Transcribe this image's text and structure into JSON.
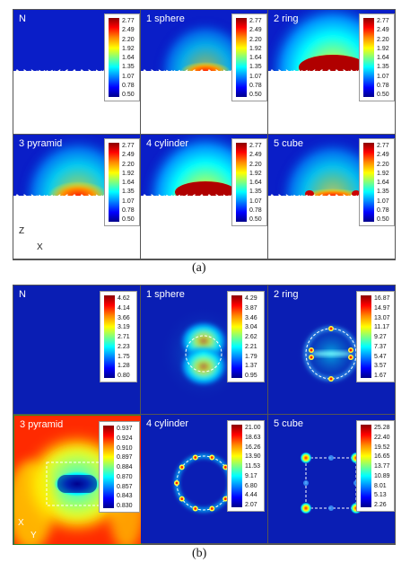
{
  "figure_a": {
    "caption": "(a)",
    "axes": {
      "vertical": "Z",
      "horizontal": "X"
    },
    "panels": [
      {
        "title": "N",
        "shape": "none",
        "ticks": [
          "2.77",
          "2.49",
          "2.20",
          "1.92",
          "1.64",
          "1.35",
          "1.07",
          "0.78",
          "0.50"
        ]
      },
      {
        "title": "1 sphere",
        "shape": "sphere",
        "ticks": [
          "2.77",
          "2.49",
          "2.20",
          "1.92",
          "1.64",
          "1.35",
          "1.07",
          "0.78",
          "0.50"
        ]
      },
      {
        "title": "2 ring",
        "shape": "ring",
        "ticks": [
          "2.77",
          "2.49",
          "2.20",
          "1.92",
          "1.64",
          "1.35",
          "1.07",
          "0.78",
          "0.50"
        ]
      },
      {
        "title": "3 pyramid",
        "shape": "pyramid",
        "ticks": [
          "2.77",
          "2.49",
          "2.20",
          "1.92",
          "1.64",
          "1.35",
          "1.07",
          "0.78",
          "0.50"
        ]
      },
      {
        "title": "4 cylinder",
        "shape": "cylinder",
        "ticks": [
          "2.77",
          "2.49",
          "2.20",
          "1.92",
          "1.64",
          "1.35",
          "1.07",
          "0.78",
          "0.50"
        ]
      },
      {
        "title": "5 cube",
        "shape": "cube",
        "ticks": [
          "2.77",
          "2.49",
          "2.20",
          "1.92",
          "1.64",
          "1.35",
          "1.07",
          "0.78",
          "0.50"
        ]
      }
    ]
  },
  "figure_b": {
    "caption": "(b)",
    "axes": {
      "vertical": "X",
      "horizontal": "Y"
    },
    "panels": [
      {
        "title": "N",
        "shape": "none",
        "ticks": [
          "4.62",
          "4.14",
          "3.66",
          "3.19",
          "2.71",
          "2.23",
          "1.75",
          "1.28",
          "0.80"
        ]
      },
      {
        "title": "1 sphere",
        "shape": "sphere",
        "ticks": [
          "4.29",
          "3.87",
          "3.46",
          "3.04",
          "2.62",
          "2.21",
          "1.79",
          "1.37",
          "0.95"
        ]
      },
      {
        "title": "2 ring",
        "shape": "ring",
        "ticks": [
          "16.87",
          "14.97",
          "13.07",
          "11.17",
          "9.27",
          "7.37",
          "5.47",
          "3.57",
          "1.67"
        ]
      },
      {
        "title": "3 pyramid",
        "shape": "pyramid",
        "ticks": [
          "0.937",
          "0.924",
          "0.910",
          "0.897",
          "0.884",
          "0.870",
          "0.857",
          "0.843",
          "0.830"
        ]
      },
      {
        "title": "4 cylinder",
        "shape": "cylinder",
        "ticks": [
          "21.00",
          "18.63",
          "16.26",
          "13.90",
          "11.53",
          "9.17",
          "6.80",
          "4.44",
          "2.07"
        ]
      },
      {
        "title": "5 cube",
        "shape": "cube",
        "ticks": [
          "25.28",
          "22.40",
          "19.52",
          "16.65",
          "13.77",
          "10.89",
          "8.01",
          "5.13",
          "2.26"
        ]
      }
    ]
  }
}
